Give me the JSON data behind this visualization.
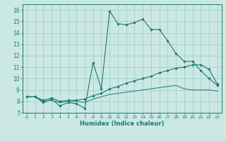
{
  "xlabel": "Humidex (Indice chaleur)",
  "xlim": [
    -0.5,
    23.5
  ],
  "ylim": [
    7,
    16.5
  ],
  "yticks": [
    7,
    8,
    9,
    10,
    11,
    12,
    13,
    14,
    15,
    16
  ],
  "xticks": [
    0,
    1,
    2,
    3,
    4,
    5,
    6,
    7,
    8,
    9,
    10,
    11,
    12,
    13,
    14,
    15,
    16,
    17,
    18,
    19,
    20,
    21,
    22,
    23
  ],
  "bg_color": "#cce8e4",
  "grid_color": "#99ccc8",
  "line_color": "#1a7a6e",
  "line1_y": [
    8.4,
    8.4,
    7.9,
    8.2,
    7.6,
    7.9,
    7.8,
    7.4,
    11.4,
    9.1,
    15.9,
    14.8,
    14.7,
    14.9,
    15.2,
    14.3,
    14.3,
    13.3,
    12.2,
    11.5,
    11.5,
    10.7,
    10.0,
    9.4
  ],
  "line2_y": [
    8.4,
    8.4,
    8.1,
    8.3,
    8.0,
    8.1,
    8.1,
    8.2,
    8.5,
    8.7,
    9.1,
    9.3,
    9.6,
    9.8,
    10.0,
    10.2,
    10.5,
    10.7,
    10.9,
    11.0,
    11.2,
    11.2,
    10.8,
    9.5
  ],
  "line3_y": [
    8.4,
    8.4,
    8.0,
    8.1,
    7.9,
    8.0,
    8.0,
    7.9,
    8.2,
    8.4,
    8.6,
    8.7,
    8.8,
    8.9,
    9.0,
    9.1,
    9.2,
    9.3,
    9.4,
    9.1,
    9.0,
    9.0,
    9.0,
    8.9
  ]
}
